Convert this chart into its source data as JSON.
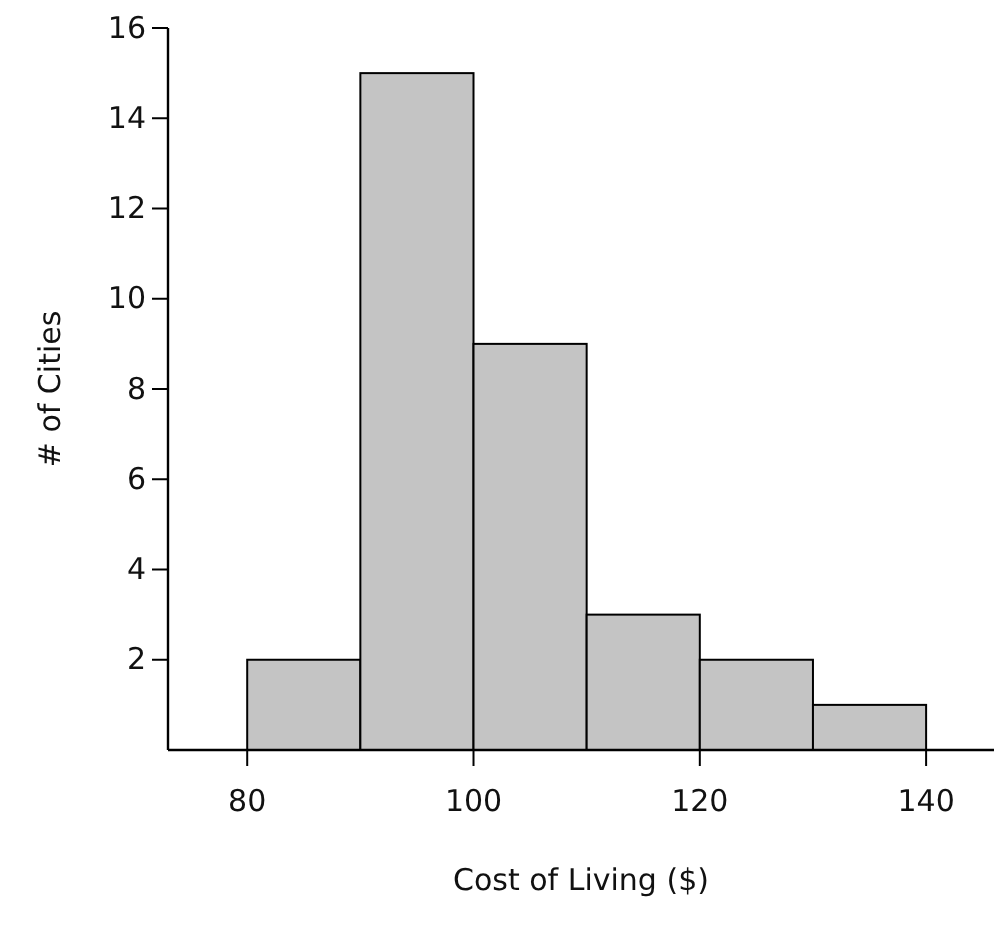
{
  "chart_data": {
    "type": "histogram",
    "xlabel": "Cost of Living ($)",
    "ylabel": "# of Cities",
    "bins": [
      80,
      90,
      100,
      110,
      120,
      130,
      140
    ],
    "values": [
      2,
      15,
      9,
      3,
      2,
      1
    ],
    "color": "#c4c4c4",
    "xlim": [
      73,
      146
    ],
    "xticks": [
      80,
      100,
      120,
      140
    ],
    "ylim": [
      0,
      16
    ],
    "yticks": [
      2,
      4,
      6,
      8,
      10,
      12,
      14,
      16
    ],
    "grid": false
  }
}
